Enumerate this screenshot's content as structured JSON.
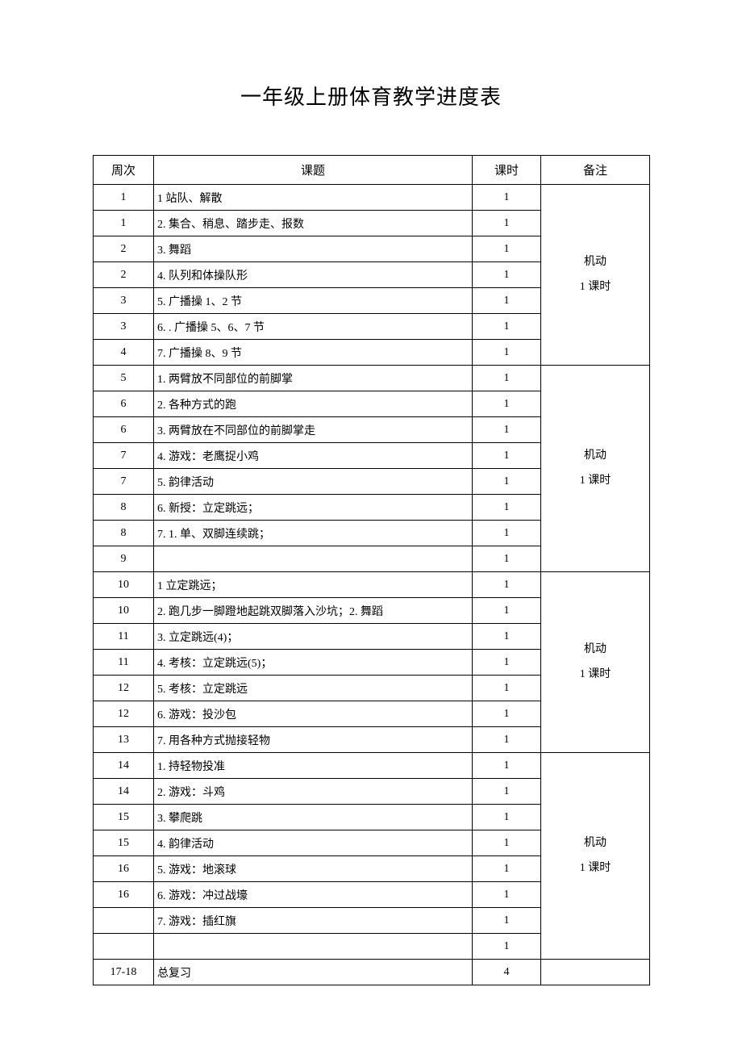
{
  "title": "一年级上册体育教学进度表",
  "headers": {
    "week": "周次",
    "topic": "课题",
    "hours": "课时",
    "notes": "备注"
  },
  "notes_text": {
    "line1": "机动",
    "line2": "1 课时"
  },
  "sections": [
    {
      "rows": [
        {
          "week": "1",
          "topic": "1 站队、解散",
          "hours": "1"
        },
        {
          "week": "1",
          "topic": "2. 集合、稍息、踏步走、报数",
          "hours": "1"
        },
        {
          "week": "2",
          "topic": "3. 舞蹈",
          "hours": "1"
        },
        {
          "week": "2",
          "topic": "4. 队列和体操队形",
          "hours": "1"
        },
        {
          "week": "3",
          "topic": "5. 广播操 1、2 节",
          "hours": "1"
        },
        {
          "week": "3",
          "topic": "6. . 广播操 5、6、7 节",
          "hours": "1"
        },
        {
          "week": "4",
          "topic": "7. 广播操 8、9 节",
          "hours": "1"
        }
      ],
      "has_note": true
    },
    {
      "rows": [
        {
          "week": "5",
          "topic": "1. 两臂放不同部位的前脚掌",
          "hours": "1"
        },
        {
          "week": "6",
          "topic": "2. 各种方式的跑",
          "hours": "1"
        },
        {
          "week": "6",
          "topic": "3. 两臂放在不同部位的前脚掌走",
          "hours": "1"
        },
        {
          "week": "7",
          "topic": "4. 游戏：老鹰捉小鸡",
          "hours": "1"
        },
        {
          "week": "7",
          "topic": "5. 韵律活动",
          "hours": "1"
        },
        {
          "week": "8",
          "topic": "6. 新授：立定跳远；",
          "hours": "1"
        },
        {
          "week": "8",
          "topic": "7. 1. 单、双脚连续跳；",
          "hours": "1"
        },
        {
          "week": "9",
          "topic": "",
          "hours": "1"
        }
      ],
      "has_note": true
    },
    {
      "rows": [
        {
          "week": "10",
          "topic": "1 立定跳远；",
          "hours": "1"
        },
        {
          "week": "10",
          "topic": "2. 跑几步一脚蹬地起跳双脚落入沙坑；2. 舞蹈",
          "hours": "1"
        },
        {
          "week": "11",
          "topic": "3. 立定跳远(4)；",
          "hours": "1"
        },
        {
          "week": "11",
          "topic": "4. 考核：立定跳远(5)；",
          "hours": "1"
        },
        {
          "week": "12",
          "topic": "5. 考核：立定跳远",
          "hours": "1"
        },
        {
          "week": "12",
          "topic": "6. 游戏：投沙包",
          "hours": "1"
        },
        {
          "week": "13",
          "topic": "7. 用各种方式抛接轻物",
          "hours": "1"
        }
      ],
      "has_note": true
    },
    {
      "rows": [
        {
          "week": "14",
          "topic": "1. 持轻物投准",
          "hours": "1"
        },
        {
          "week": "14",
          "topic": "2. 游戏：斗鸡",
          "hours": "1"
        },
        {
          "week": "15",
          "topic": "3. 攀爬跳",
          "hours": "1"
        },
        {
          "week": "15",
          "topic": "4. 韵律活动",
          "hours": "1"
        },
        {
          "week": "16",
          "topic": "5. 游戏：地滚球",
          "hours": "1"
        },
        {
          "week": "16",
          "topic": "6. 游戏：冲过战壕",
          "hours": "1"
        },
        {
          "week": "",
          "topic": "7. 游戏：插红旗",
          "hours": "1"
        },
        {
          "week": "",
          "topic": "",
          "hours": "1"
        }
      ],
      "has_note": true
    },
    {
      "rows": [
        {
          "week": "17-18",
          "topic": "总复习",
          "hours": "4"
        }
      ],
      "has_note": false
    }
  ]
}
